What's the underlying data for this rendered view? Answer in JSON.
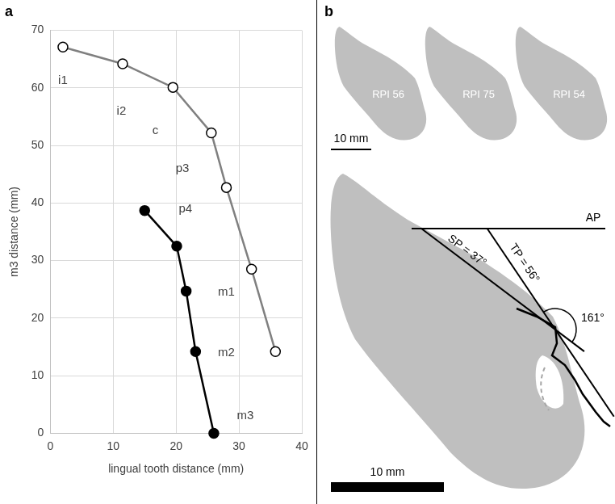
{
  "chart_data": {
    "type": "line",
    "title": "a",
    "x_label": "lingual tooth distance (mm)",
    "y_label": "m3 distance (mm)",
    "series": [
      {
        "color": "#808080",
        "marker": "open_circle",
        "x": [
          2.0,
          11.5,
          19.5,
          25.6,
          28.0,
          32.0,
          35.8
        ],
        "values": [
          67.1,
          64.2,
          60.1,
          52.2,
          42.7,
          28.5,
          14.2
        ]
      },
      {
        "color": "#000000",
        "marker": "filled_circle",
        "x": [
          15.0,
          20.1,
          21.6,
          23.1,
          26.0
        ],
        "values": [
          38.7,
          32.5,
          24.7,
          14.2,
          0
        ]
      }
    ],
    "annotations": [
      {
        "text": "i1",
        "x": 2.0,
        "y": 61.3
      },
      {
        "text": "i2",
        "x": 11.3,
        "y": 56.0
      },
      {
        "text": "c",
        "x": 16.7,
        "y": 52.6
      },
      {
        "text": "p3",
        "x": 21.0,
        "y": 46.0
      },
      {
        "text": "p4",
        "x": 21.5,
        "y": 39.0
      },
      {
        "text": "m1",
        "x": 28.0,
        "y": 24.5
      },
      {
        "text": "m2",
        "x": 28.0,
        "y": 14.0
      },
      {
        "text": "m3",
        "x": 31.0,
        "y": 3.0
      }
    ],
    "xlim": [
      0,
      40
    ],
    "xticks": [
      0,
      10,
      20,
      30,
      40
    ],
    "ylim": [
      0,
      70
    ],
    "yticks": [
      0,
      10,
      20,
      30,
      40,
      50,
      60,
      70
    ],
    "grid": true
  },
  "diagram": {
    "title": "b",
    "specimens": [
      "RPI 56",
      "RPI 75",
      "RPI 54"
    ],
    "scale_bars": [
      "10 mm",
      "10 mm"
    ],
    "reference_line": "AP",
    "angles": [
      {
        "label": "SP = 37°",
        "value": 37
      },
      {
        "label": "TP = 56°",
        "value": 56
      },
      {
        "label": "161°",
        "value": 161
      }
    ]
  }
}
